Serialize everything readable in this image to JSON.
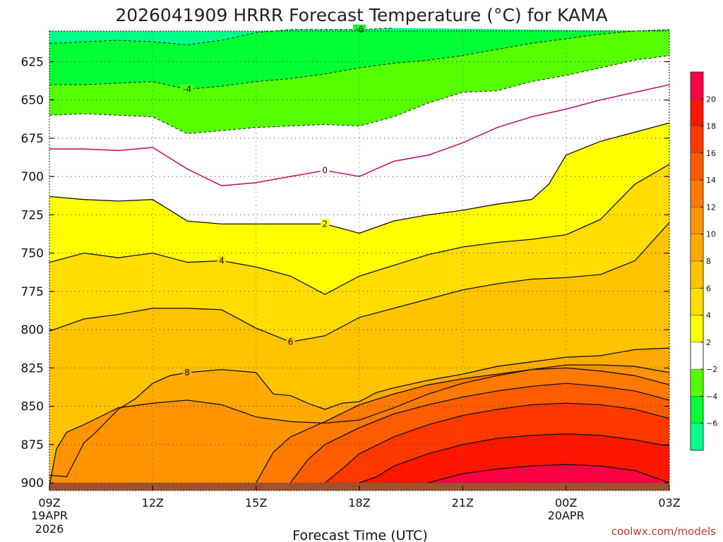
{
  "chart_data": {
    "type": "contour",
    "title": "2026041909 HRRR Forecast Temperature (°C) for KAMA",
    "xlabel": "Forecast Time (UTC)",
    "ylabel": "",
    "credit": "coolwx.com/models",
    "x_ticks": [
      {
        "hour": 0,
        "label": "09Z",
        "sub1": "19APR",
        "sub2": "2026"
      },
      {
        "hour": 3,
        "label": "12Z"
      },
      {
        "hour": 6,
        "label": "15Z"
      },
      {
        "hour": 9,
        "label": "18Z"
      },
      {
        "hour": 12,
        "label": "21Z"
      },
      {
        "hour": 15,
        "label": "00Z",
        "sub1": "20APR"
      },
      {
        "hour": 18,
        "label": "03Z"
      }
    ],
    "x_range": [
      0,
      18
    ],
    "y_ticks": [
      {
        "p": 625,
        "label": "625"
      },
      {
        "p": 650,
        "label": "650"
      },
      {
        "p": 675,
        "label": "675"
      },
      {
        "p": 700,
        "label": "700"
      },
      {
        "p": 725,
        "label": "725"
      },
      {
        "p": 750,
        "label": "750"
      },
      {
        "p": 775,
        "label": "775"
      },
      {
        "p": 800,
        "label": "800"
      },
      {
        "p": 825,
        "label": "825"
      },
      {
        "p": 850,
        "label": "850"
      },
      {
        "p": 875,
        "label": "875"
      },
      {
        "p": 900,
        "label": "900"
      }
    ],
    "y_range_hPa": [
      605,
      905
    ],
    "ground_level_hPa": 900,
    "colorbar": {
      "ticks": [
        "20",
        "18",
        "16",
        "14",
        "12",
        "10",
        "8",
        "6",
        "4",
        "2",
        "−2",
        "−4",
        "−6"
      ],
      "bands": [
        {
          "lo": 20,
          "hi": 22,
          "color": "#ff0044"
        },
        {
          "lo": 18,
          "hi": 20,
          "color": "#ff1500"
        },
        {
          "lo": 16,
          "hi": 18,
          "color": "#ff3800"
        },
        {
          "lo": 14,
          "hi": 16,
          "color": "#ff5c00"
        },
        {
          "lo": 12,
          "hi": 14,
          "color": "#ff7a00"
        },
        {
          "lo": 10,
          "hi": 12,
          "color": "#ff9400"
        },
        {
          "lo": 8,
          "hi": 10,
          "color": "#ffaa00"
        },
        {
          "lo": 6,
          "hi": 8,
          "color": "#ffc300"
        },
        {
          "lo": 4,
          "hi": 6,
          "color": "#ffdd00"
        },
        {
          "lo": 2,
          "hi": 4,
          "color": "#ffff00"
        },
        {
          "lo": -2,
          "hi": 2,
          "color": "#ffffff"
        },
        {
          "lo": -4,
          "hi": -2,
          "color": "#55ff00"
        },
        {
          "lo": -6,
          "hi": -4,
          "color": "#00ff33"
        },
        {
          "lo": -8,
          "hi": -6,
          "color": "#00ff88"
        }
      ]
    },
    "contours": [
      {
        "value": -6,
        "label": "-6",
        "style": "dashed",
        "label_at": 9,
        "points": [
          [
            0,
            613
          ],
          [
            1,
            612
          ],
          [
            2,
            611
          ],
          [
            3,
            612
          ],
          [
            4,
            614
          ],
          [
            5,
            611
          ],
          [
            6,
            606
          ],
          [
            7,
            604
          ],
          [
            8,
            604
          ],
          [
            9,
            604
          ],
          [
            10,
            603
          ]
        ]
      },
      {
        "value": -4,
        "label": "-4",
        "style": "dashed",
        "label_at": 4,
        "points": [
          [
            0,
            640
          ],
          [
            1,
            640
          ],
          [
            2,
            639
          ],
          [
            3,
            638
          ],
          [
            4,
            643
          ],
          [
            5,
            641
          ],
          [
            6,
            638
          ],
          [
            7,
            636
          ],
          [
            8,
            633
          ],
          [
            9,
            629
          ],
          [
            10,
            626
          ],
          [
            11,
            624
          ],
          [
            12,
            621
          ],
          [
            13,
            617
          ],
          [
            14,
            613
          ],
          [
            15,
            610
          ],
          [
            16,
            607
          ],
          [
            17,
            605
          ],
          [
            18,
            604
          ]
        ]
      },
      {
        "value": -2,
        "label": "",
        "style": "dashed",
        "label_at": null,
        "points": [
          [
            0,
            660
          ],
          [
            1,
            659
          ],
          [
            2,
            660
          ],
          [
            3,
            661
          ],
          [
            4,
            672
          ],
          [
            5,
            670
          ],
          [
            6,
            668
          ],
          [
            7,
            667
          ],
          [
            8,
            666
          ],
          [
            9,
            667
          ],
          [
            10,
            661
          ],
          [
            11,
            652
          ],
          [
            12,
            645
          ],
          [
            13,
            644
          ],
          [
            14,
            638
          ],
          [
            15,
            634
          ],
          [
            16,
            629
          ],
          [
            17,
            624
          ],
          [
            18,
            621
          ]
        ]
      },
      {
        "value": 0,
        "label": "0",
        "style": "solid-magenta",
        "label_at": 8,
        "points": [
          [
            0,
            682
          ],
          [
            1,
            682
          ],
          [
            2,
            683
          ],
          [
            3,
            681
          ],
          [
            4,
            695
          ],
          [
            5,
            706
          ],
          [
            6,
            704
          ],
          [
            7,
            700
          ],
          [
            8,
            696
          ],
          [
            9,
            700
          ],
          [
            10,
            690
          ],
          [
            11,
            686
          ],
          [
            12,
            678
          ],
          [
            13,
            668
          ],
          [
            14,
            661
          ],
          [
            15,
            656
          ],
          [
            16,
            650
          ],
          [
            17,
            645
          ],
          [
            18,
            640
          ]
        ]
      },
      {
        "value": 2,
        "label": "2",
        "style": "solid",
        "label_at": 8,
        "points": [
          [
            0,
            713
          ],
          [
            1,
            715
          ],
          [
            2,
            716
          ],
          [
            3,
            715
          ],
          [
            4,
            729
          ],
          [
            5,
            731
          ],
          [
            6,
            731
          ],
          [
            7,
            731
          ],
          [
            8,
            731
          ],
          [
            9,
            737
          ],
          [
            10,
            729
          ],
          [
            11,
            725
          ],
          [
            12,
            722
          ],
          [
            13,
            718
          ],
          [
            14,
            715
          ],
          [
            14.5,
            705
          ],
          [
            15,
            686
          ],
          [
            16,
            677
          ],
          [
            17,
            671
          ],
          [
            18,
            665
          ]
        ]
      },
      {
        "value": 4,
        "label": "4",
        "style": "solid",
        "label_at": 5,
        "points": [
          [
            0,
            756
          ],
          [
            1,
            750
          ],
          [
            2,
            753
          ],
          [
            3,
            750
          ],
          [
            4,
            756
          ],
          [
            5,
            755
          ],
          [
            6,
            759
          ],
          [
            7,
            765
          ],
          [
            8,
            777
          ],
          [
            9,
            765
          ],
          [
            10,
            758
          ],
          [
            11,
            751
          ],
          [
            12,
            746
          ],
          [
            13,
            743
          ],
          [
            14,
            741
          ],
          [
            15,
            738
          ],
          [
            16,
            728
          ],
          [
            17,
            705
          ],
          [
            18,
            692
          ]
        ]
      },
      {
        "value": 6,
        "label": "6",
        "style": "solid",
        "label_at": 7,
        "points": [
          [
            0,
            801
          ],
          [
            1,
            793
          ],
          [
            2,
            790
          ],
          [
            3,
            786
          ],
          [
            4,
            786
          ],
          [
            5,
            787
          ],
          [
            6,
            799
          ],
          [
            7,
            808
          ],
          [
            8,
            804
          ],
          [
            9,
            792
          ],
          [
            10,
            786
          ],
          [
            11,
            780
          ],
          [
            12,
            774
          ],
          [
            13,
            770
          ],
          [
            14,
            767
          ],
          [
            15,
            766
          ],
          [
            16,
            764
          ],
          [
            17,
            755
          ],
          [
            18,
            730
          ]
        ]
      },
      {
        "value": 8,
        "label": "8",
        "style": "solid",
        "label_at": 4,
        "points": [
          [
            0,
            895
          ],
          [
            0.5,
            896
          ],
          [
            1,
            874
          ],
          [
            1.3,
            868
          ],
          [
            2,
            852
          ],
          [
            2.5,
            845
          ],
          [
            3,
            835
          ],
          [
            3.5,
            830
          ],
          [
            4,
            828
          ],
          [
            5,
            826
          ],
          [
            6,
            828
          ],
          [
            6.5,
            842
          ],
          [
            7,
            843
          ],
          [
            7.5,
            848
          ],
          [
            8,
            852
          ],
          [
            8.5,
            848
          ],
          [
            9,
            847
          ],
          [
            9.5,
            841
          ],
          [
            10,
            838
          ],
          [
            11,
            833
          ],
          [
            12,
            829
          ],
          [
            13,
            824
          ],
          [
            14,
            821
          ],
          [
            15,
            818
          ],
          [
            16,
            817
          ],
          [
            17,
            813
          ],
          [
            18,
            812
          ]
        ]
      },
      {
        "value": 10,
        "label": "",
        "style": "solid",
        "label_at": null,
        "points": [
          [
            0,
            902
          ],
          [
            0.2,
            878
          ],
          [
            0.5,
            867
          ],
          [
            1,
            862
          ],
          [
            2,
            851
          ],
          [
            3,
            848
          ],
          [
            4,
            846
          ],
          [
            5,
            849
          ],
          [
            6,
            857
          ],
          [
            7,
            860
          ],
          [
            8,
            861
          ],
          [
            9,
            859
          ],
          [
            10,
            851
          ],
          [
            11,
            842
          ],
          [
            12,
            835
          ],
          [
            13,
            830
          ],
          [
            14,
            826
          ],
          [
            15,
            823
          ],
          [
            16,
            823
          ],
          [
            17,
            824
          ],
          [
            18,
            828
          ]
        ]
      },
      {
        "value": 12,
        "label": "",
        "style": "solid",
        "label_at": null,
        "points": [
          [
            6,
            900
          ],
          [
            6.5,
            880
          ],
          [
            7,
            870
          ],
          [
            8,
            860
          ],
          [
            9,
            849
          ],
          [
            10,
            842
          ],
          [
            11,
            836
          ],
          [
            12,
            832
          ],
          [
            13,
            829
          ],
          [
            14,
            826
          ],
          [
            15,
            825
          ],
          [
            16,
            827
          ],
          [
            17,
            830
          ],
          [
            18,
            836
          ]
        ]
      },
      {
        "value": 14,
        "label": "",
        "style": "solid",
        "label_at": null,
        "points": [
          [
            7,
            900
          ],
          [
            7.5,
            885
          ],
          [
            8,
            875
          ],
          [
            9,
            864
          ],
          [
            10,
            855
          ],
          [
            11,
            849
          ],
          [
            12,
            844
          ],
          [
            13,
            840
          ],
          [
            14,
            837
          ],
          [
            15,
            835
          ],
          [
            16,
            837
          ],
          [
            17,
            840
          ],
          [
            18,
            846
          ]
        ]
      },
      {
        "value": 16,
        "label": "",
        "style": "solid",
        "label_at": null,
        "points": [
          [
            8,
            900
          ],
          [
            8.5,
            891
          ],
          [
            9,
            881
          ],
          [
            10,
            870
          ],
          [
            11,
            862
          ],
          [
            12,
            856
          ],
          [
            13,
            852
          ],
          [
            14,
            849
          ],
          [
            15,
            848
          ],
          [
            16,
            849
          ],
          [
            17,
            852
          ],
          [
            18,
            858
          ]
        ]
      },
      {
        "value": 18,
        "label": "",
        "style": "solid",
        "label_at": null,
        "points": [
          [
            9,
            900
          ],
          [
            9.5,
            896
          ],
          [
            10,
            889
          ],
          [
            11,
            881
          ],
          [
            12,
            875
          ],
          [
            13,
            871
          ],
          [
            14,
            869
          ],
          [
            15,
            868
          ],
          [
            16,
            869
          ],
          [
            17,
            872
          ],
          [
            18,
            876
          ]
        ]
      },
      {
        "value": 20,
        "label": "",
        "style": "solid",
        "label_at": null,
        "points": [
          [
            11,
            900
          ],
          [
            12,
            894
          ],
          [
            13,
            891
          ],
          [
            14,
            889
          ],
          [
            15,
            888
          ],
          [
            16,
            889
          ],
          [
            17,
            892
          ],
          [
            18,
            900
          ]
        ]
      }
    ]
  }
}
